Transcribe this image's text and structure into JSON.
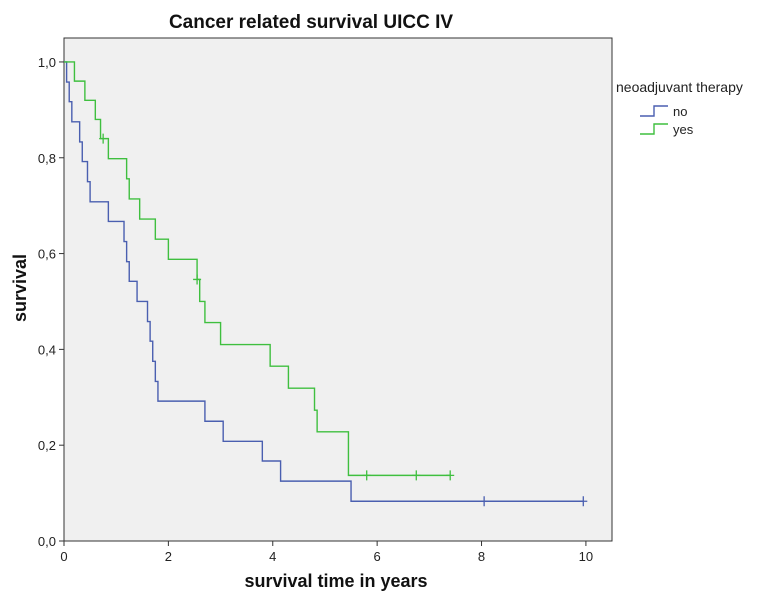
{
  "chart_data": {
    "type": "line",
    "subtype": "kaplan-meier-step",
    "title": "Cancer related survival UICC IV",
    "xlabel": "survival time in years",
    "ylabel": "survival",
    "xlim": [
      0,
      10.5
    ],
    "ylim": [
      0,
      1.05
    ],
    "x_ticks": [
      "0",
      "2",
      "4",
      "6",
      "8",
      "10"
    ],
    "x_tick_values": [
      0,
      2,
      4,
      6,
      8,
      10
    ],
    "y_ticks": [
      "0,0",
      "0,2",
      "0,4",
      "0,6",
      "0,8",
      "1,0"
    ],
    "y_tick_values": [
      0,
      0.2,
      0.4,
      0.6,
      0.8,
      1.0
    ],
    "grid": false,
    "legend": {
      "title": "neoadjuvant therapy",
      "placement": "right"
    },
    "series": [
      {
        "name": "no",
        "color": "#4a5fb0",
        "steps": [
          [
            0,
            1.0
          ],
          [
            0.05,
            0.958
          ],
          [
            0.1,
            0.917
          ],
          [
            0.15,
            0.875
          ],
          [
            0.3,
            0.833
          ],
          [
            0.35,
            0.792
          ],
          [
            0.45,
            0.75
          ],
          [
            0.5,
            0.708
          ],
          [
            0.8,
            0.708
          ],
          [
            0.85,
            0.667
          ],
          [
            1.15,
            0.625
          ],
          [
            1.2,
            0.583
          ],
          [
            1.25,
            0.542
          ],
          [
            1.4,
            0.5
          ],
          [
            1.6,
            0.458
          ],
          [
            1.65,
            0.417
          ],
          [
            1.7,
            0.375
          ],
          [
            1.75,
            0.333
          ],
          [
            1.8,
            0.292
          ],
          [
            2.7,
            0.25
          ],
          [
            3.05,
            0.208
          ],
          [
            3.8,
            0.167
          ],
          [
            4.15,
            0.125
          ],
          [
            5.5,
            0.083
          ],
          [
            9.95,
            0.083
          ]
        ],
        "censored": [
          [
            8.05,
            0.083
          ],
          [
            9.95,
            0.083
          ]
        ]
      },
      {
        "name": "yes",
        "color": "#3fbf3f",
        "steps": [
          [
            0,
            1.0
          ],
          [
            0.2,
            0.96
          ],
          [
            0.4,
            0.92
          ],
          [
            0.6,
            0.88
          ],
          [
            0.7,
            0.84
          ],
          [
            0.85,
            0.798
          ],
          [
            1.2,
            0.756
          ],
          [
            1.25,
            0.714
          ],
          [
            1.45,
            0.672
          ],
          [
            1.75,
            0.63
          ],
          [
            2.0,
            0.588
          ],
          [
            2.55,
            0.546
          ],
          [
            2.6,
            0.5
          ],
          [
            2.7,
            0.456
          ],
          [
            3.0,
            0.41
          ],
          [
            3.95,
            0.365
          ],
          [
            4.3,
            0.319
          ],
          [
            4.8,
            0.273
          ],
          [
            4.85,
            0.228
          ],
          [
            5.45,
            0.137
          ],
          [
            7.4,
            0.137
          ]
        ],
        "censored": [
          [
            0.75,
            0.84
          ],
          [
            2.55,
            0.546
          ],
          [
            5.8,
            0.137
          ],
          [
            6.75,
            0.137
          ],
          [
            7.4,
            0.137
          ]
        ]
      }
    ]
  }
}
